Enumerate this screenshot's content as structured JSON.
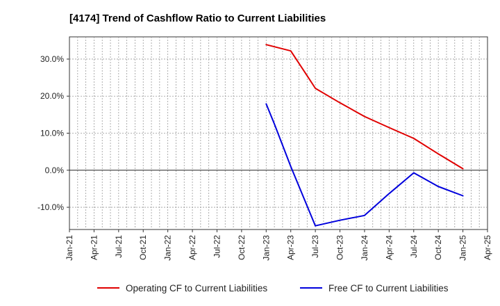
{
  "chart_data": {
    "type": "line",
    "title": "[4174]  Trend of Cashflow Ratio to Current Liabilities",
    "xlabel": "",
    "ylabel": "",
    "x_ticks": [
      "Jan-21",
      "Apr-21",
      "Jul-21",
      "Oct-21",
      "Jan-22",
      "Apr-22",
      "Jul-22",
      "Oct-22",
      "Jan-23",
      "Apr-23",
      "Jul-23",
      "Oct-23",
      "Jan-24",
      "Apr-24",
      "Jul-24",
      "Oct-24",
      "Jan-25",
      "Apr-25"
    ],
    "xlim": [
      "2021-01",
      "2025-04"
    ],
    "y_ticks": [
      "30.0%",
      "20.0%",
      "10.0%",
      "0.0%",
      "-10.0%"
    ],
    "y_tick_values": [
      30,
      20,
      10,
      0,
      -10
    ],
    "ylim": [
      -16,
      36
    ],
    "grid": true,
    "legend_position": "bottom",
    "series": [
      {
        "name": "Operating CF to Current Liabilities",
        "color": "#e00000",
        "points": [
          {
            "x": "2023-01",
            "y": 33.9
          },
          {
            "x": "2023-04",
            "y": 32.2
          },
          {
            "x": "2023-06",
            "y": 25.5
          },
          {
            "x": "2023-07",
            "y": 22.1
          },
          {
            "x": "2023-10",
            "y": 18.2
          },
          {
            "x": "2024-01",
            "y": 14.5
          },
          {
            "x": "2024-04",
            "y": 11.5
          },
          {
            "x": "2024-07",
            "y": 8.6
          },
          {
            "x": "2024-10",
            "y": 4.4
          },
          {
            "x": "2025-01",
            "y": 0.4
          }
        ]
      },
      {
        "name": "Free CF to Current Liabilities",
        "color": "#0000dd",
        "points": [
          {
            "x": "2023-01",
            "y": 17.9
          },
          {
            "x": "2023-02",
            "y": 12.5
          },
          {
            "x": "2023-04",
            "y": 1.0
          },
          {
            "x": "2023-07",
            "y": -15.0
          },
          {
            "x": "2023-10",
            "y": -13.5
          },
          {
            "x": "2024-01",
            "y": -12.2
          },
          {
            "x": "2024-04",
            "y": -6.3
          },
          {
            "x": "2024-07",
            "y": -0.7
          },
          {
            "x": "2024-10",
            "y": -4.4
          },
          {
            "x": "2025-01",
            "y": -6.9
          }
        ]
      }
    ]
  }
}
